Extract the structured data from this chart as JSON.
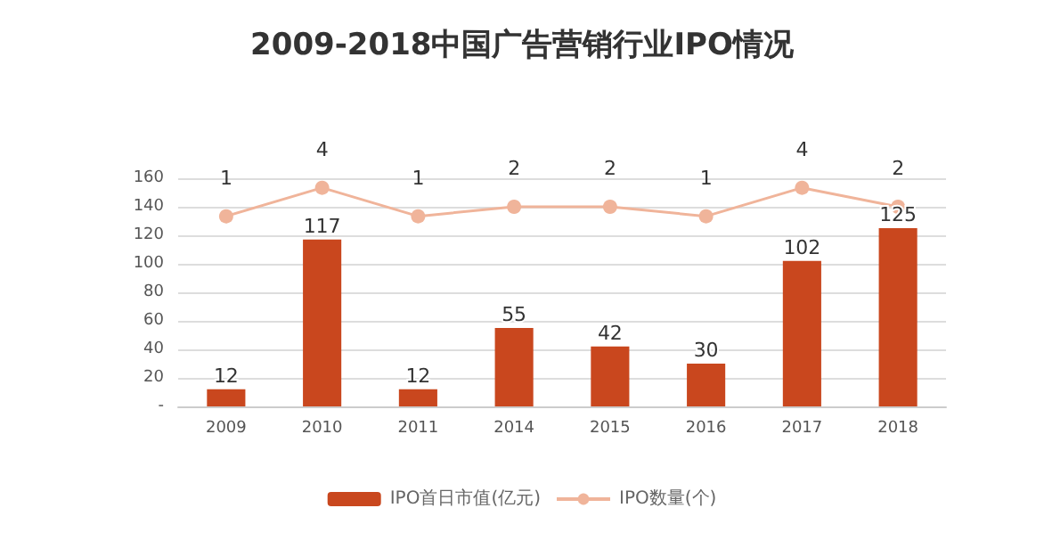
{
  "chart_data": {
    "type": "bar",
    "title": "2009-2018中国广告营销行业IPO情况",
    "categories": [
      "2009",
      "2010",
      "2011",
      "2014",
      "2015",
      "2016",
      "2017",
      "2018"
    ],
    "series": [
      {
        "name": "IPO首日市值(亿元)",
        "color": "#c9471e",
        "values": [
          12,
          117,
          12,
          55,
          42,
          30,
          102,
          125
        ]
      },
      {
        "name": "IPO数量(个)",
        "type": "line",
        "axis": "y2",
        "color": "#f0b49a",
        "marker": "circle",
        "values": [
          1,
          4,
          1,
          2,
          2,
          1,
          4,
          2
        ]
      }
    ],
    "ylim": [
      0,
      160
    ],
    "yticks": [
      {
        "value": 0,
        "label": "-"
      },
      20,
      40,
      60,
      80,
      100,
      120,
      140,
      160
    ],
    "y2lim": [
      -19,
      5
    ],
    "grid": "y",
    "legend": "bottom",
    "data_labels": true
  }
}
